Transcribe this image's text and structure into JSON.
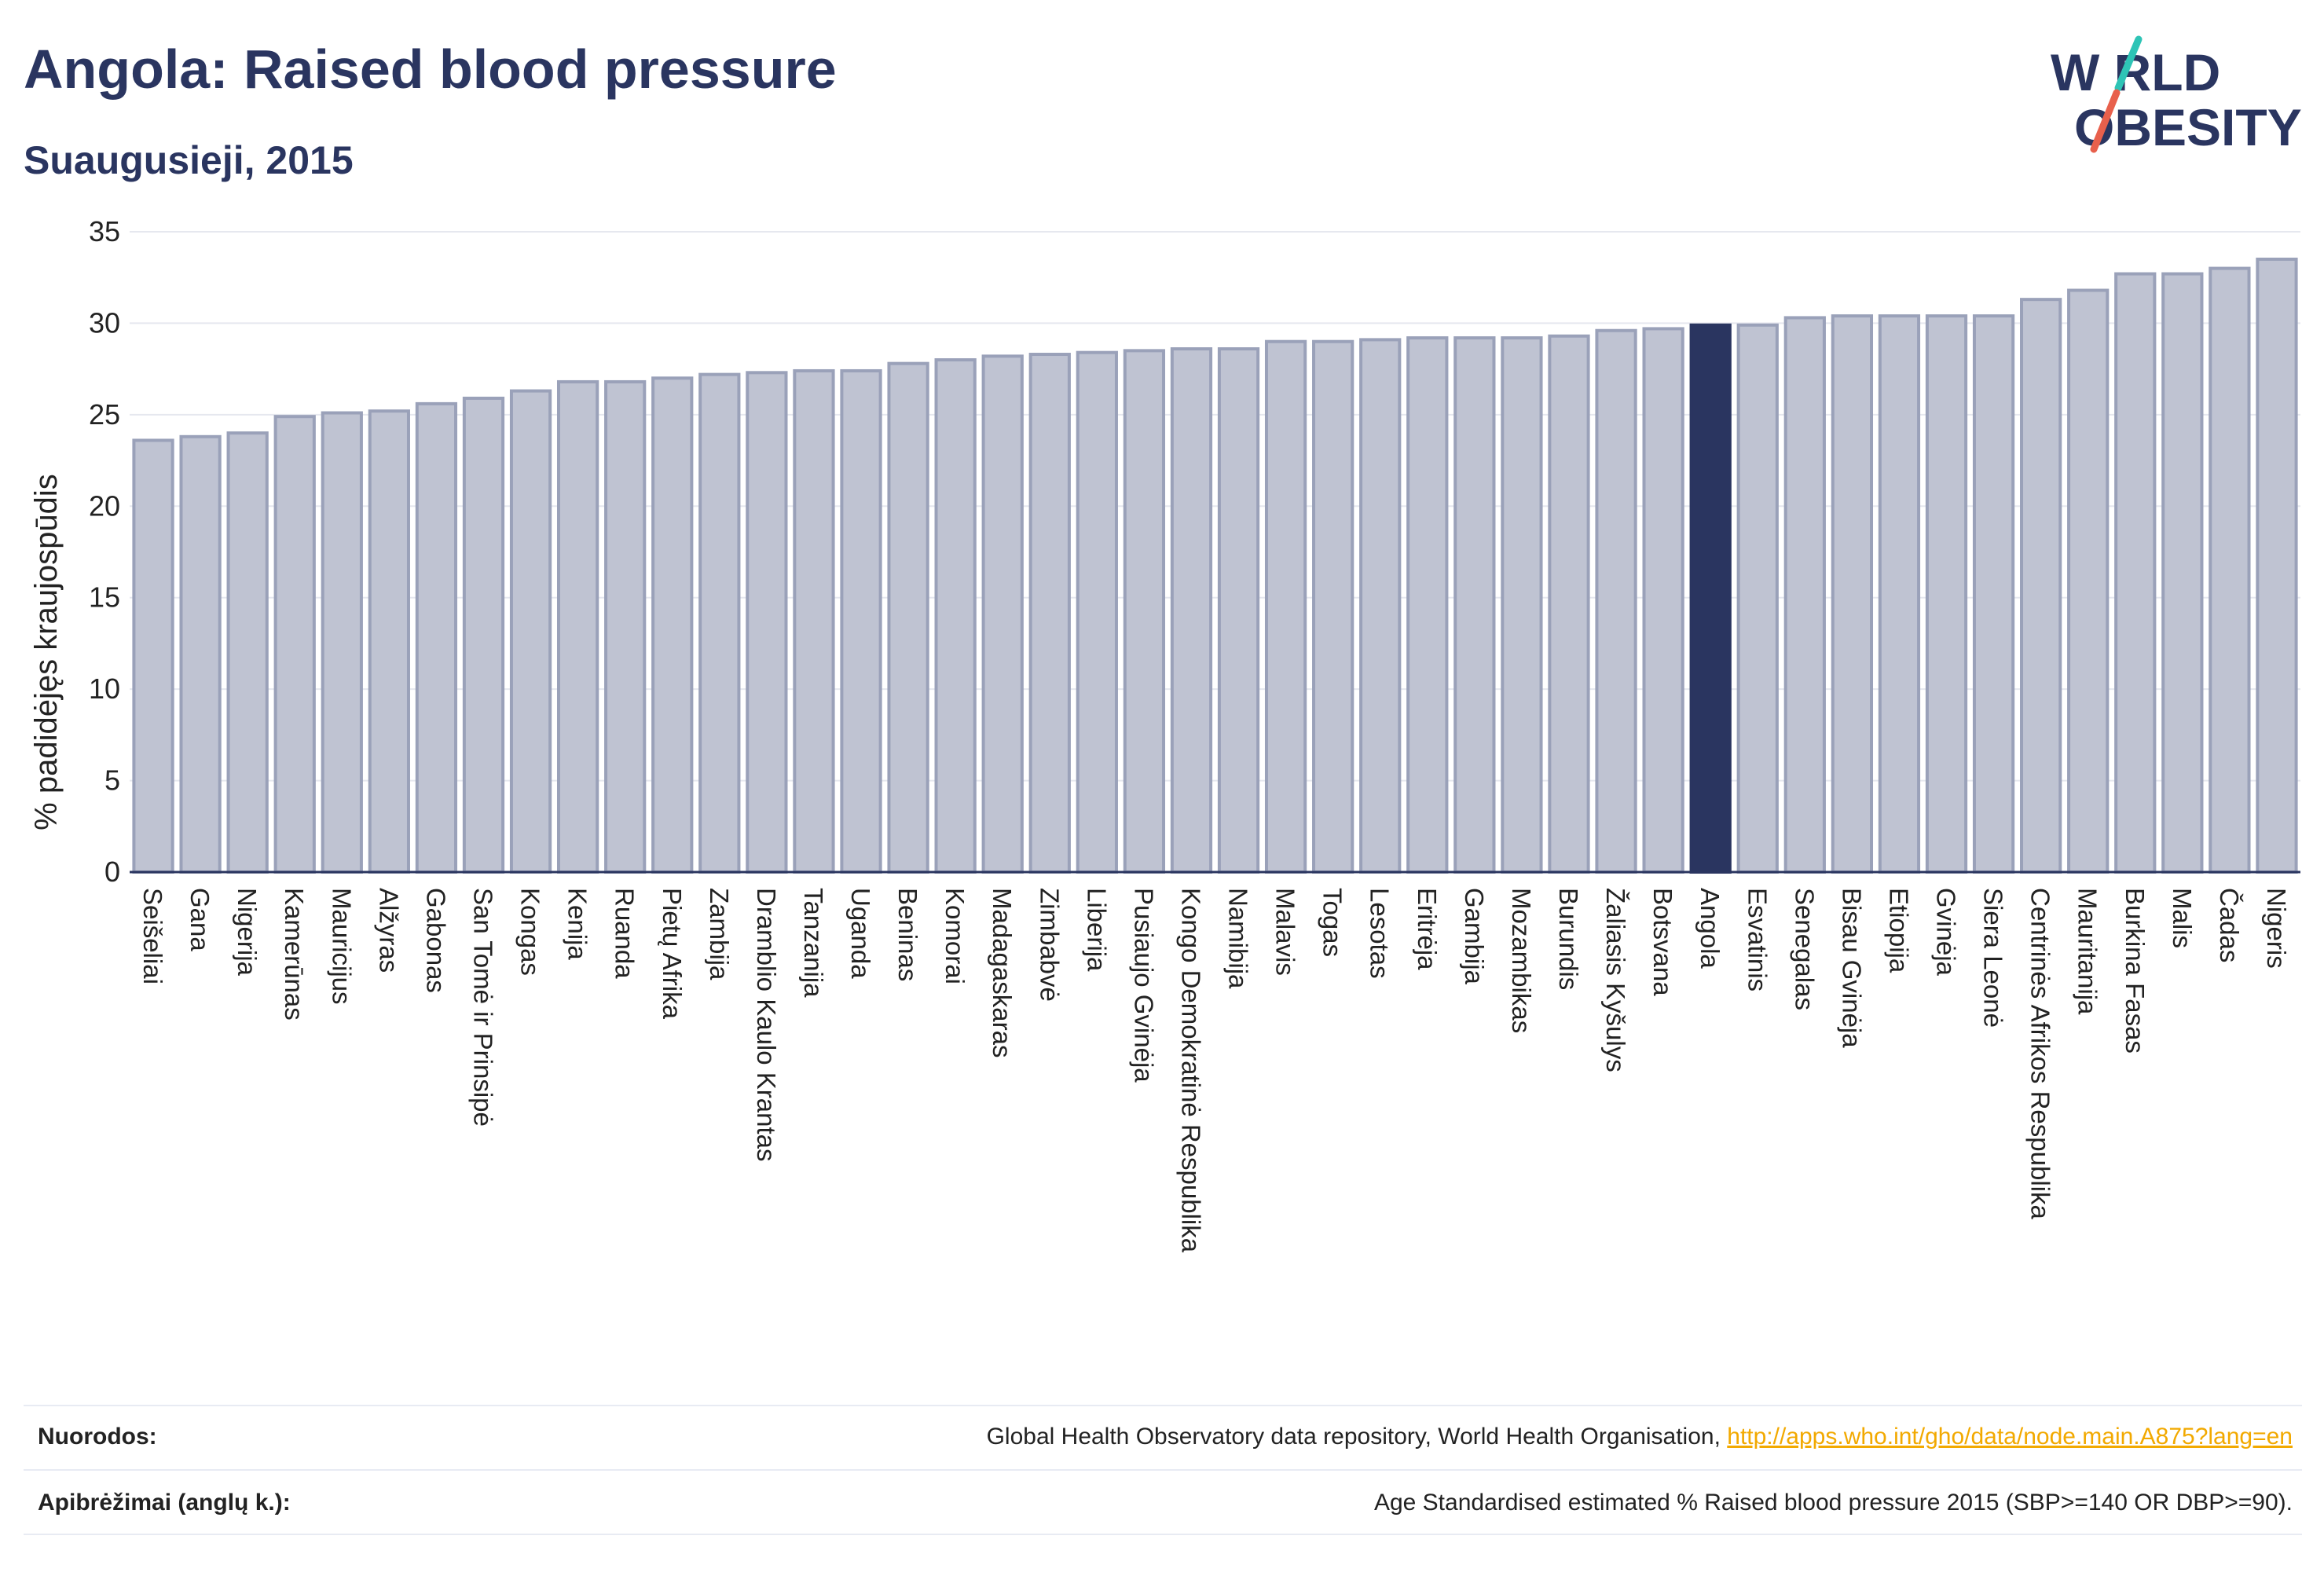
{
  "header": {
    "title": "Angola: Raised blood pressure",
    "subtitle": "Suaugusieji, 2015"
  },
  "logo": {
    "line1": "W RLD",
    "line2": "OBESITY",
    "text": "WORLD OBESITY",
    "slash_colors": [
      "#2ec4b6",
      "#e8604c"
    ]
  },
  "colors": {
    "bar": "#bfc3d2",
    "bar_edge": "#9aa1b9",
    "highlight": "#2a3560",
    "title": "#2a3560",
    "link": "#f2a900"
  },
  "chart_data": {
    "type": "bar",
    "ylabel": "% padidėjęs kraujospūdis",
    "ylim": [
      0,
      35
    ],
    "yticks": [
      0,
      5,
      10,
      15,
      20,
      25,
      30,
      35
    ],
    "grid": true,
    "highlight": "Angola",
    "categories": [
      "Seišeliai",
      "Gana",
      "Nigerija",
      "Kamerūnas",
      "Mauricijus",
      "Alžyras",
      "Gabonas",
      "San Tomė ir Prinsipė",
      "Kongas",
      "Kenija",
      "Ruanda",
      "Pietų Afrika",
      "Zambija",
      "Dramblio Kaulo Krantas",
      "Tanzanija",
      "Uganda",
      "Beninas",
      "Komorai",
      "Madagaskaras",
      "Zimbabvė",
      "Liberija",
      "Pusiaujo Gvinėja",
      "Kongo Demokratinė Respublika",
      "Namibija",
      "Malavis",
      "Togas",
      "Lesotas",
      "Eritrėja",
      "Gambija",
      "Mozambikas",
      "Burundis",
      "Žaliasis Kyšulys",
      "Botsvana",
      "Angola",
      "Esvatinis",
      "Senegalas",
      "Bisau Gvinėja",
      "Etiopija",
      "Gvinėja",
      "Siera Leonė",
      "Centrinės Afrikos Respublika",
      "Mauritanija",
      "Burkina Fasas",
      "Malis",
      "Čadas",
      "Nigeris"
    ],
    "values": [
      23.6,
      23.8,
      24.0,
      24.9,
      25.1,
      25.2,
      25.6,
      25.9,
      26.3,
      26.8,
      26.8,
      27.0,
      27.2,
      27.3,
      27.4,
      27.4,
      27.8,
      28.0,
      28.2,
      28.3,
      28.4,
      28.5,
      28.6,
      28.6,
      29.0,
      29.0,
      29.1,
      29.2,
      29.2,
      29.2,
      29.3,
      29.6,
      29.7,
      29.9,
      29.9,
      30.3,
      30.4,
      30.4,
      30.4,
      30.4,
      31.3,
      31.8,
      32.7,
      32.7,
      33.0,
      33.5
    ]
  },
  "footer": {
    "sources_label": "Nuorodos:",
    "sources_text": "Global Health Observatory data repository, World Health Organisation, ",
    "sources_link": "http://apps.who.int/gho/data/node.main.A875?lang=en",
    "definitions_label": "Apibrėžimai (anglų k.):",
    "definitions_text": "Age Standardised estimated % Raised blood pressure 2015 (SBP>=140 OR DBP>=90)."
  }
}
